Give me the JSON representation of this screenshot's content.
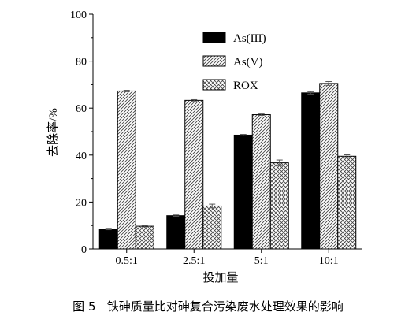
{
  "chart_data": {
    "type": "bar",
    "xlabel": "投加量",
    "ylabel": "去除率/%",
    "categories": [
      "0.5:1",
      "2.5:1",
      "5:1",
      "10:1"
    ],
    "ylim": [
      0,
      100
    ],
    "yticks": [
      0,
      20,
      40,
      60,
      80,
      100
    ],
    "legend_position": "top-right",
    "series": [
      {
        "name": "As(III)",
        "values": [
          8.5,
          14.2,
          48.5,
          66.5
        ],
        "errors": [
          0.3,
          0.3,
          0.3,
          0.5
        ],
        "color": "#000000",
        "pattern": "solid"
      },
      {
        "name": "As(V)",
        "values": [
          67.3,
          63.3,
          57.2,
          70.5
        ],
        "errors": [
          0.3,
          0.3,
          0.3,
          0.8
        ],
        "color": "#ffffff",
        "pattern": "diagonal"
      },
      {
        "name": "ROX",
        "values": [
          9.7,
          18.3,
          36.7,
          39.5
        ],
        "errors": [
          0.3,
          0.8,
          1.2,
          0.6
        ],
        "color": "#ffffff",
        "pattern": "crosshatch"
      }
    ]
  },
  "caption": {
    "figure_label": "图 5",
    "text": "铁砷质量比对砷复合污染废水处理效果的影响"
  }
}
